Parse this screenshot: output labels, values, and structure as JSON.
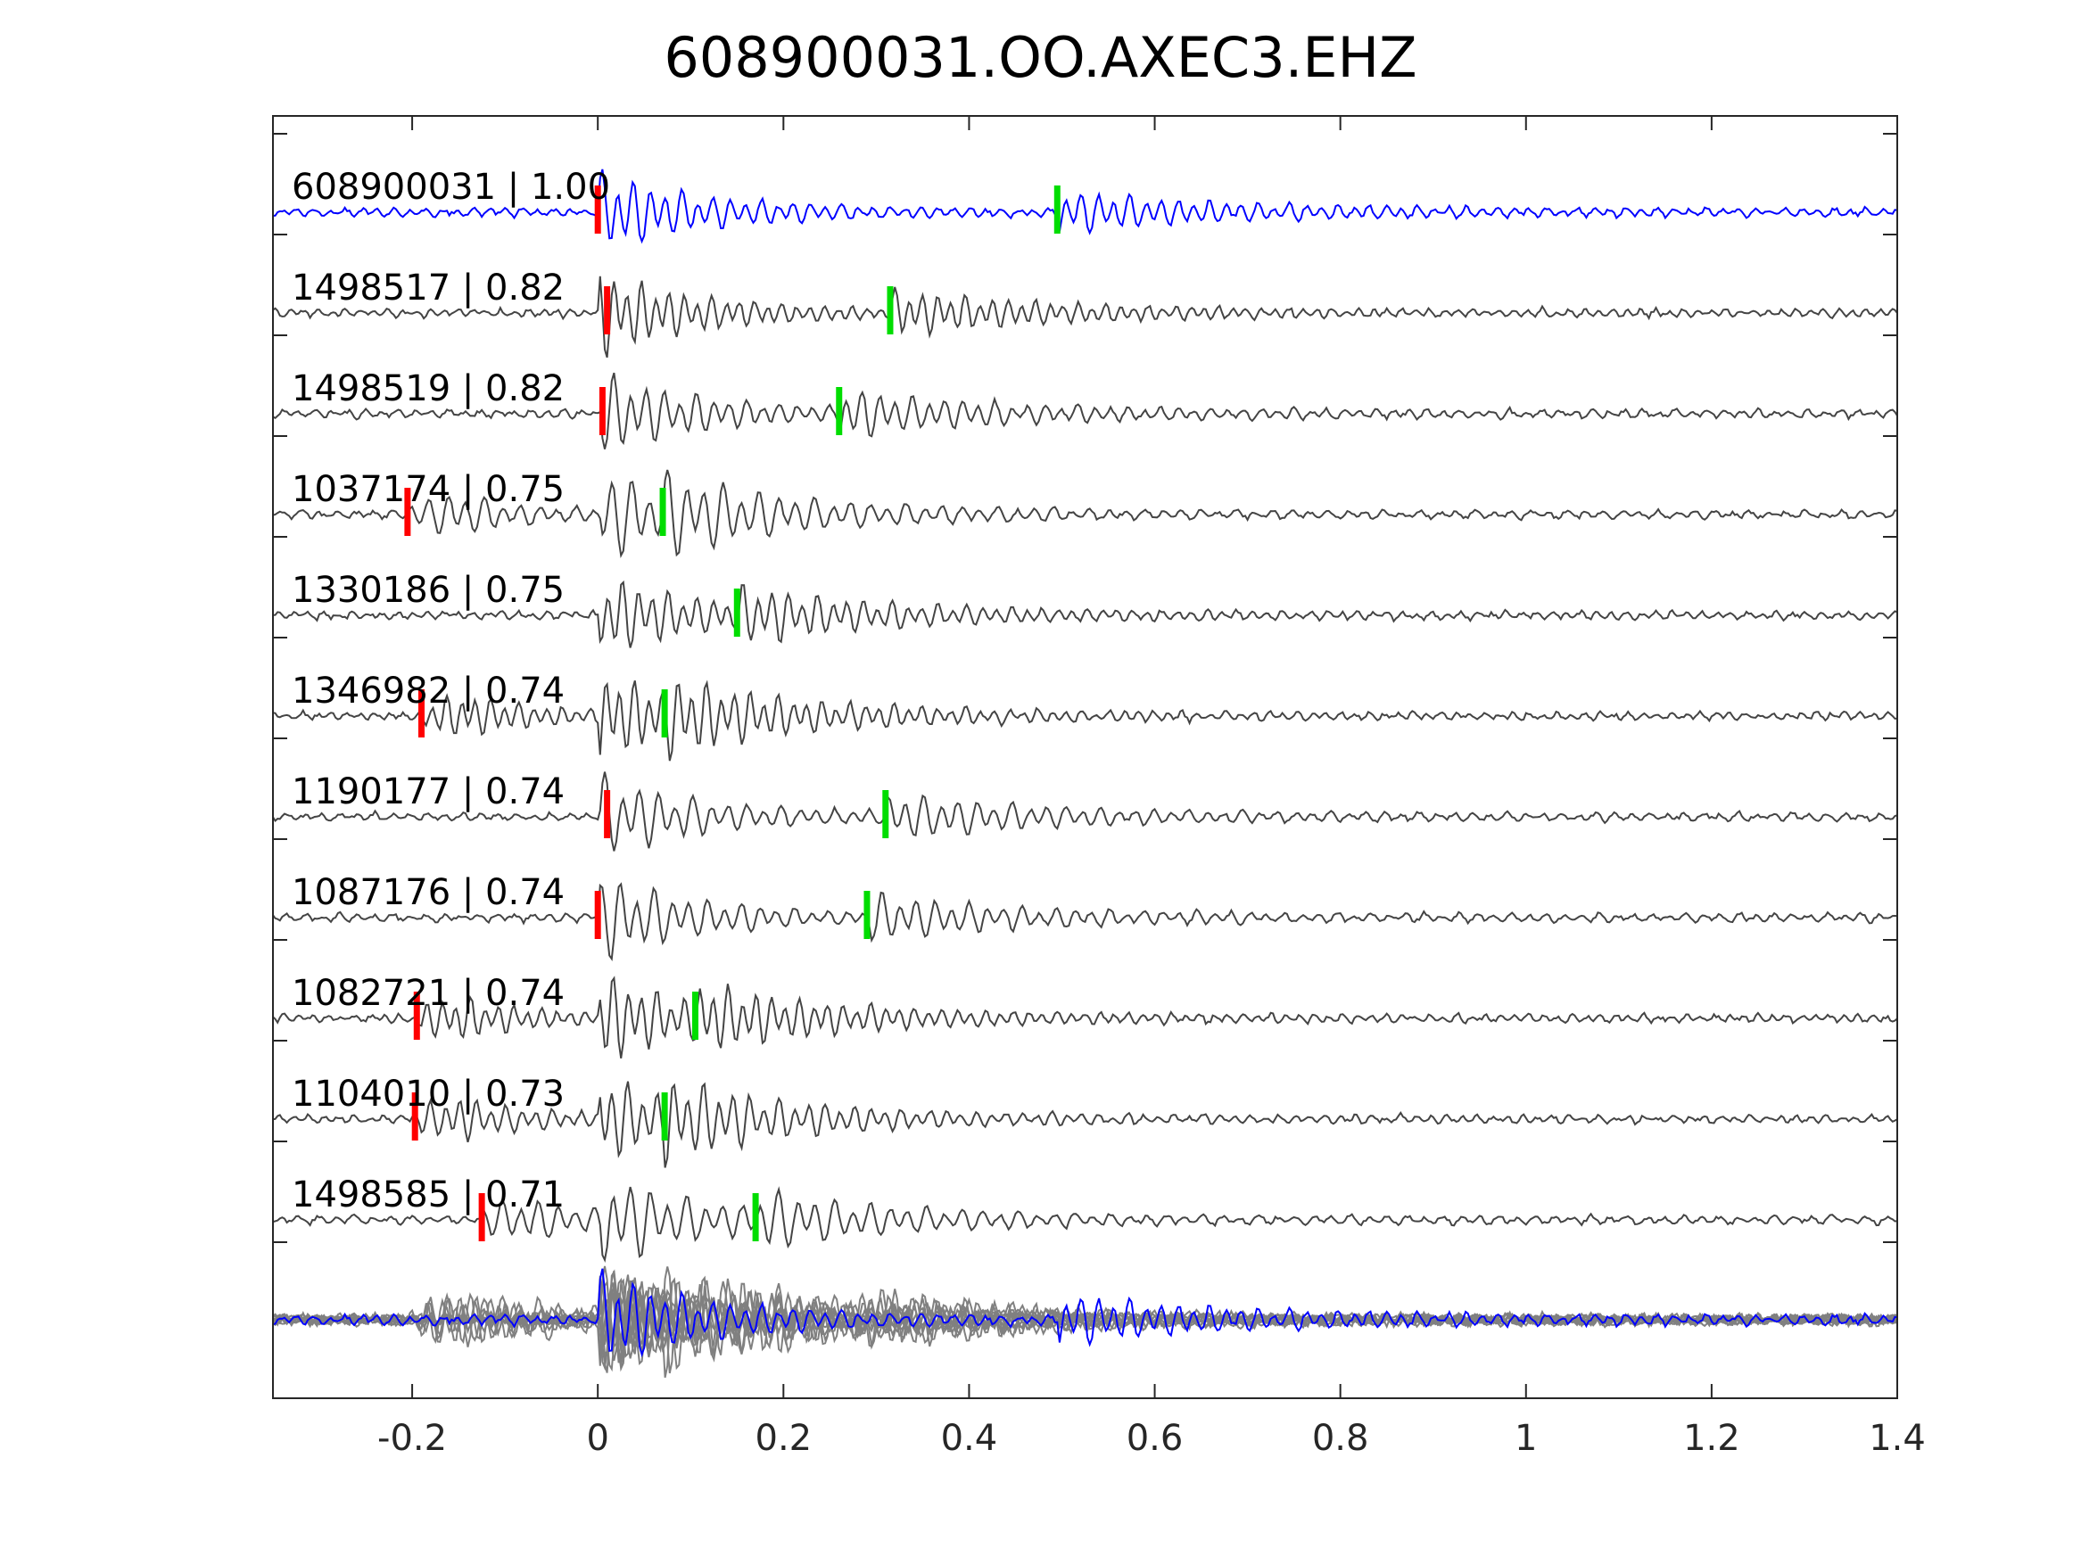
{
  "chart_data": {
    "type": "line",
    "title": "608900031.OO.AXEC3.EHZ",
    "xlabel": "",
    "ylabel": "",
    "xlim": [
      -0.35,
      1.4
    ],
    "xticks": [
      -0.2,
      0,
      0.2,
      0.4,
      0.6,
      0.8,
      1,
      1.2,
      1.4
    ],
    "xtick_labels": [
      "-0.2",
      "0",
      "0.2",
      "0.4",
      "0.6",
      "0.8",
      "1",
      "1.2",
      "1.4"
    ],
    "grid": false,
    "legend": "none",
    "colors": {
      "reference_trace": "#0000ff",
      "similar_trace": "#444444",
      "overlay_trace": "#808080",
      "p_pick": "#ff0000",
      "s_pick": "#00dd00",
      "axes": "#262626"
    },
    "series": [
      {
        "label": "608900031 | 1.00",
        "event_id": "608900031",
        "correlation": 1.0,
        "p_pick": 0.0,
        "s_pick": 0.495,
        "reference": true
      },
      {
        "label": "1498517 | 0.82",
        "event_id": "1498517",
        "correlation": 0.82,
        "p_pick": 0.01,
        "s_pick": 0.315
      },
      {
        "label": "1498519 | 0.82",
        "event_id": "1498519",
        "correlation": 0.82,
        "p_pick": 0.005,
        "s_pick": 0.26
      },
      {
        "label": "1037174 | 0.75",
        "event_id": "1037174",
        "correlation": 0.75,
        "p_pick": -0.205,
        "s_pick": 0.07
      },
      {
        "label": "1330186 | 0.75",
        "event_id": "1330186",
        "correlation": 0.75,
        "p_pick": null,
        "s_pick": 0.15
      },
      {
        "label": "1346982 | 0.74",
        "event_id": "1346982",
        "correlation": 0.74,
        "p_pick": -0.19,
        "s_pick": 0.072
      },
      {
        "label": "1190177 | 0.74",
        "event_id": "1190177",
        "correlation": 0.74,
        "p_pick": 0.01,
        "s_pick": 0.31
      },
      {
        "label": "1087176 | 0.74",
        "event_id": "1087176",
        "correlation": 0.74,
        "p_pick": 0.0,
        "s_pick": 0.29
      },
      {
        "label": "1082721 | 0.74",
        "event_id": "1082721",
        "correlation": 0.74,
        "p_pick": -0.195,
        "s_pick": 0.105
      },
      {
        "label": "1104010 | 0.73",
        "event_id": "1104010",
        "correlation": 0.73,
        "p_pick": -0.197,
        "s_pick": 0.072
      },
      {
        "label": "1498585 | 0.71",
        "event_id": "1498585",
        "correlation": 0.71,
        "p_pick": -0.125,
        "s_pick": 0.17
      }
    ],
    "stack_row": true
  }
}
